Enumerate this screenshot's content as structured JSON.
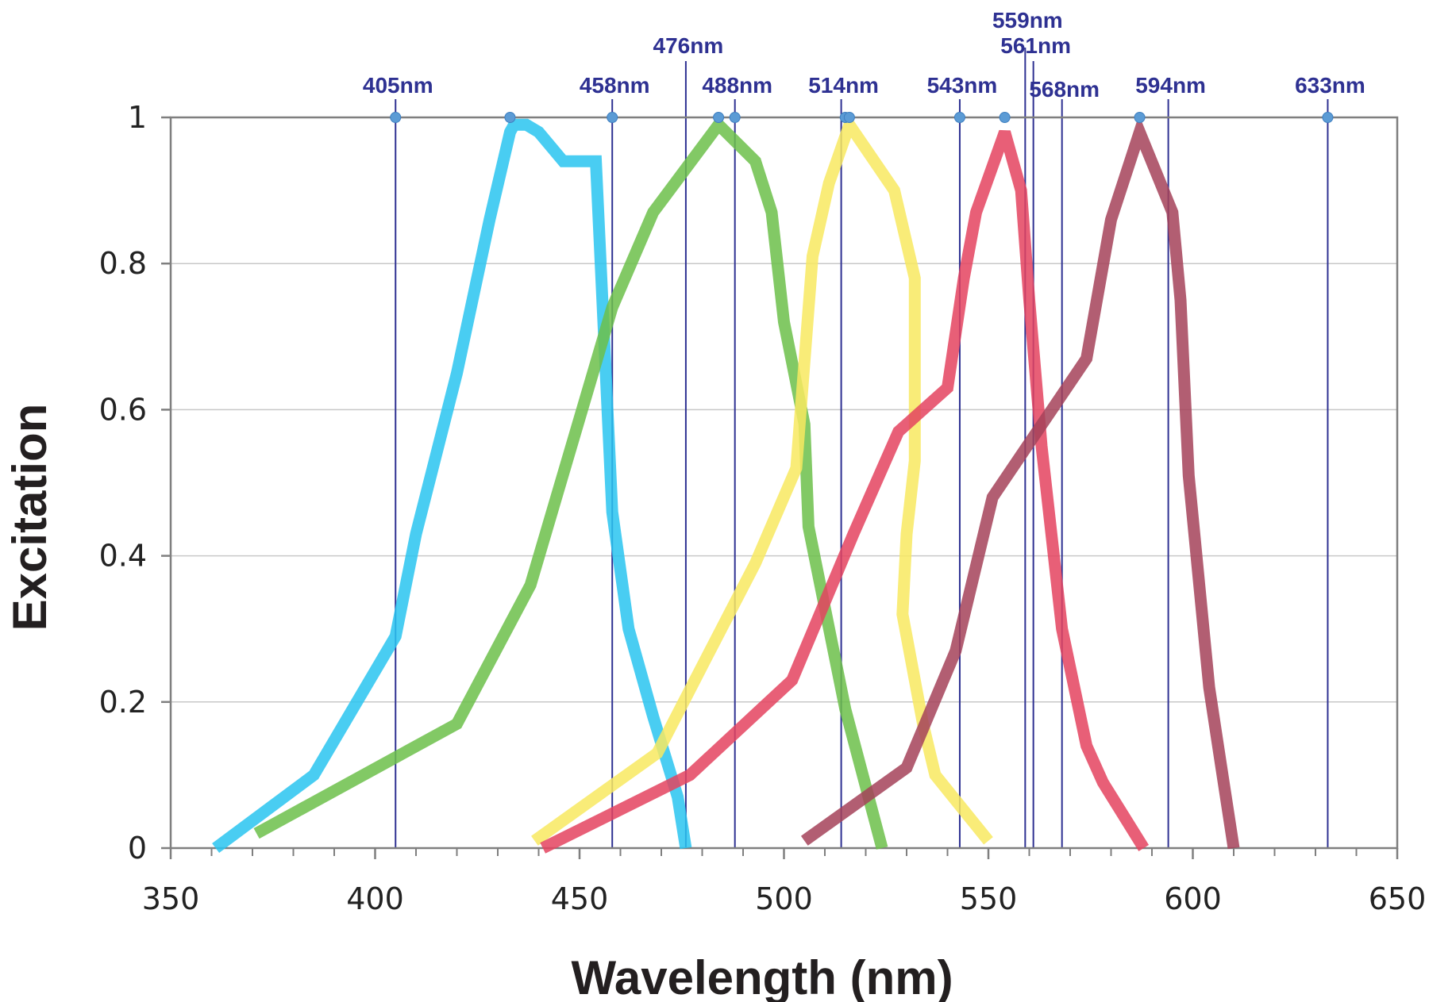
{
  "chart_data": {
    "type": "line",
    "title": "",
    "xlabel": "Wavelength (nm)",
    "ylabel": "Excitation",
    "xlim": [
      350,
      650
    ],
    "ylim": [
      0,
      1
    ],
    "x_ticks": [
      350,
      400,
      450,
      500,
      550,
      600,
      650
    ],
    "x_tick_labels": [
      "350",
      "400",
      "450",
      "500",
      "550",
      "600",
      "650"
    ],
    "y_ticks": [
      0,
      0.2,
      0.4,
      0.6,
      0.8,
      1
    ],
    "y_tick_labels": [
      "0",
      "0.2",
      "0.4",
      "0.6",
      "0.8",
      "1"
    ],
    "grid": "horizontal",
    "laser_lines": [
      {
        "wavelength": 405,
        "label": "405nm",
        "marker_x": 405,
        "label_row": 2
      },
      {
        "wavelength": 458,
        "label": "458nm",
        "marker_x": 458,
        "label_row": 2
      },
      {
        "wavelength": 476,
        "label": "476nm",
        "marker_x": null,
        "label_row": 1
      },
      {
        "wavelength": 488,
        "label": "488nm",
        "marker_x": 488,
        "label_row": 2
      },
      {
        "wavelength": 514,
        "label": "514nm",
        "marker_x": 515,
        "label_row": 2
      },
      {
        "wavelength": 543,
        "label": "543nm",
        "marker_x": 543,
        "label_row": 2
      },
      {
        "wavelength": 559,
        "label": "559nm",
        "marker_x": null,
        "label_row": 0
      },
      {
        "wavelength": 561,
        "label": "561nm",
        "marker_x": null,
        "label_row": 1
      },
      {
        "wavelength": 568,
        "label": "568nm",
        "marker_x": null,
        "label_row": 3
      },
      {
        "wavelength": 594,
        "label": "594nm",
        "marker_x": null,
        "label_row": 2
      },
      {
        "wavelength": 633,
        "label": "633nm",
        "marker_x": 633,
        "label_row": 2
      }
    ],
    "peak_markers": [
      {
        "x": 433,
        "y": 1
      },
      {
        "x": 484,
        "y": 1
      },
      {
        "x": 516,
        "y": 1
      },
      {
        "x": 554,
        "y": 1
      },
      {
        "x": 587,
        "y": 1
      }
    ],
    "series": [
      {
        "color": "#29c4f0",
        "x": [
          361,
          385,
          405,
          410,
          420,
          428,
          433,
          434,
          437,
          440,
          446,
          454,
          456,
          458,
          462,
          468,
          474,
          476
        ],
        "y": [
          0,
          0.1,
          0.29,
          0.43,
          0.65,
          0.86,
          0.98,
          0.99,
          0.99,
          0.98,
          0.94,
          0.94,
          0.7,
          0.46,
          0.3,
          0.18,
          0.07,
          0
        ]
      },
      {
        "color": "#6cc04a",
        "x": [
          371,
          420,
          438,
          458,
          468,
          484,
          493,
          497,
          500,
          505,
          506,
          515,
          524
        ],
        "y": [
          0.02,
          0.17,
          0.36,
          0.74,
          0.87,
          0.99,
          0.94,
          0.87,
          0.72,
          0.58,
          0.44,
          0.19,
          0
        ]
      },
      {
        "color": "#f8e960",
        "x": [
          439,
          469,
          481,
          493,
          503,
          507,
          511,
          516,
          527,
          532,
          532,
          530,
          529,
          534,
          537,
          550
        ],
        "y": [
          0.01,
          0.13,
          0.26,
          0.39,
          0.52,
          0.81,
          0.91,
          0.99,
          0.9,
          0.78,
          0.53,
          0.43,
          0.32,
          0.17,
          0.1,
          0.01
        ]
      },
      {
        "color": "#e4435f",
        "x": [
          441,
          477,
          502,
          517,
          528,
          540,
          544,
          547,
          554,
          558,
          560,
          563,
          568,
          574,
          578,
          588
        ],
        "y": [
          0,
          0.1,
          0.23,
          0.43,
          0.57,
          0.63,
          0.78,
          0.87,
          0.98,
          0.9,
          0.75,
          0.55,
          0.3,
          0.14,
          0.09,
          0
        ]
      },
      {
        "color": "#a54259",
        "x": [
          505,
          530,
          542,
          551,
          574,
          580,
          587,
          595,
          597,
          599,
          604,
          607,
          610
        ],
        "y": [
          0.01,
          0.11,
          0.27,
          0.48,
          0.67,
          0.86,
          0.98,
          0.87,
          0.75,
          0.51,
          0.22,
          0.11,
          0
        ]
      }
    ]
  }
}
